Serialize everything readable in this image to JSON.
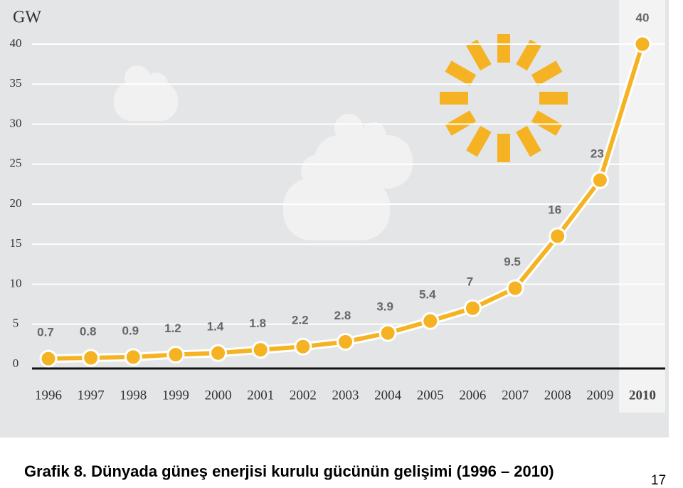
{
  "chart_data": {
    "type": "line",
    "y_label": "GW",
    "categories": [
      "1996",
      "1997",
      "1998",
      "1999",
      "2000",
      "2001",
      "2002",
      "2003",
      "2004",
      "2005",
      "2006",
      "2007",
      "2008",
      "2009",
      "2010"
    ],
    "values": [
      0.7,
      0.8,
      0.9,
      1.2,
      1.4,
      1.8,
      2.2,
      2.8,
      3.9,
      5.4,
      7,
      9.5,
      16,
      23,
      40
    ],
    "color": "#f5b324",
    "ylim": [
      0,
      40
    ],
    "yticks": [
      0,
      5,
      10,
      15,
      20,
      25,
      30,
      35,
      40
    ],
    "grid": true
  },
  "caption": "Grafik 8. Dünyada güneş enerjisi kurulu gücünün gelişimi (1996 – 2010)",
  "page_number": "17"
}
